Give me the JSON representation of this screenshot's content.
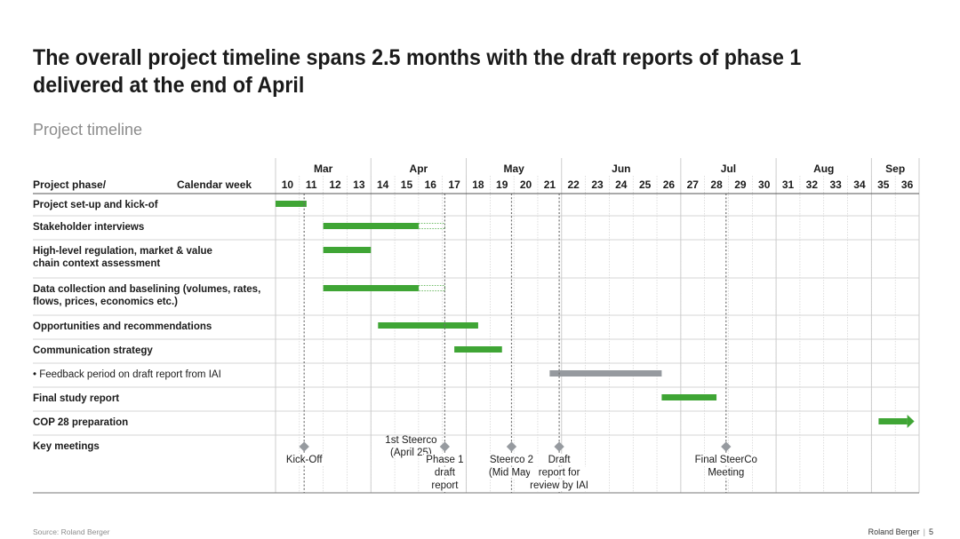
{
  "title": "The overall project timeline spans 2.5 months with the draft reports of phase 1 delivered at the end of April",
  "subtitle": "Project timeline",
  "header": {
    "phase_label": "Project  phase/",
    "calendar_label": "Calendar week"
  },
  "chart_data": {
    "type": "gantt",
    "title": "Project timeline",
    "x_unit": "calendar week",
    "weeks": [
      10,
      11,
      12,
      13,
      14,
      15,
      16,
      17,
      18,
      19,
      20,
      21,
      22,
      23,
      24,
      25,
      26,
      27,
      28,
      29,
      30,
      31,
      32,
      33,
      34,
      35,
      36
    ],
    "months": [
      {
        "label": "Mar",
        "from_week": 10,
        "to_week": 13
      },
      {
        "label": "Apr",
        "from_week": 14,
        "to_week": 17
      },
      {
        "label": "May",
        "from_week": 18,
        "to_week": 21
      },
      {
        "label": "Jun",
        "from_week": 22,
        "to_week": 26
      },
      {
        "label": "Jul",
        "from_week": 27,
        "to_week": 30
      },
      {
        "label": "Aug",
        "from_week": 31,
        "to_week": 34
      },
      {
        "label": "Sep",
        "from_week": 35,
        "to_week": 36
      }
    ],
    "tasks": [
      {
        "label": "Project set-up and kick-of",
        "bold": true,
        "start": 10,
        "end": 11.3,
        "color": "green"
      },
      {
        "label": "Stakeholder interviews",
        "bold": true,
        "start": 12,
        "end": 16,
        "ext_end": 17.1,
        "color": "green"
      },
      {
        "label": "High-level regulation, market & value chain context assessment",
        "lines": [
          "High-level regulation, market & value",
          "chain context assessment"
        ],
        "bold": true,
        "start": 12,
        "end": 14,
        "color": "green"
      },
      {
        "label": "Data collection and baselining (volumes, rates, flows, prices, economics etc.)",
        "lines": [
          "Data collection and baselining (volumes, rates,",
          "flows, prices, economics etc.)"
        ],
        "bold": true,
        "start": 12,
        "end": 16,
        "ext_end": 17.1,
        "color": "green"
      },
      {
        "label": "Opportunities and recommendations",
        "bold": true,
        "start": 14.3,
        "end": 18.5,
        "color": "green"
      },
      {
        "label": "Communication strategy",
        "bold": true,
        "start": 17.5,
        "end": 19.5,
        "color": "green"
      },
      {
        "label": "Feedback period on draft report from IAI",
        "bullet": true,
        "bold": false,
        "start": 21.5,
        "end": 26.2,
        "color": "grey"
      },
      {
        "label": "Final study report",
        "bold": true,
        "start": 26.2,
        "end": 28.5,
        "color": "green"
      },
      {
        "label": "COP 28 preparation",
        "bold": true,
        "start": 35.3,
        "end": 36.8,
        "color": "green",
        "arrow": true
      },
      {
        "label": "Key meetings",
        "bold": true,
        "meetings": true
      }
    ],
    "meetings": [
      {
        "week": 11.2,
        "below": [
          "Kick-Off"
        ]
      },
      {
        "week": 17.1,
        "above": [
          "1st Steerco",
          "(April 25)"
        ],
        "below": [
          "Phase 1",
          "draft",
          "report"
        ]
      },
      {
        "week": 19.9,
        "below": [
          "Steerco 2",
          "(Mid May)"
        ]
      },
      {
        "week": 21.9,
        "below": [
          "Draft",
          "report for",
          "review by IAI"
        ]
      },
      {
        "week": 28.9,
        "below": [
          "Final SteerCo",
          "Meeting"
        ]
      }
    ],
    "milestone_lines_weeks": [
      11.2,
      17.1,
      19.9,
      21.9,
      28.9
    ],
    "colors": {
      "green": "#3fa535",
      "grey": "#969a9f",
      "grid": "#c8c8c8",
      "rule": "#9a9a9a",
      "text": "#1a1a1a"
    }
  },
  "footer": {
    "source": "Source: Roland Berger",
    "brand": "Roland Berger",
    "page": "5"
  }
}
